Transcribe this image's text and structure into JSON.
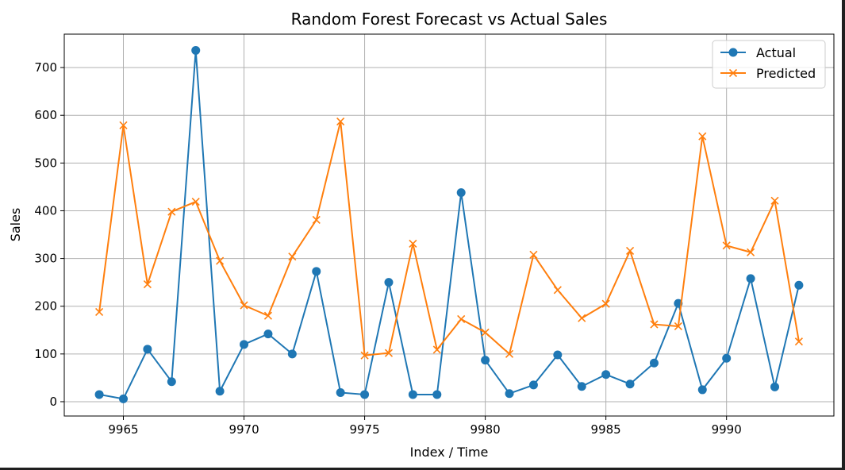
{
  "chart_data": {
    "type": "line",
    "title": "Random Forest Forecast vs Actual Sales",
    "xlabel": "Index / Time",
    "ylabel": "Sales",
    "xlim": [
      9962.55,
      9994.45
    ],
    "ylim": [
      -30,
      770
    ],
    "xticks": [
      9965,
      9970,
      9975,
      9980,
      9985,
      9990
    ],
    "yticks": [
      0,
      100,
      200,
      300,
      400,
      500,
      600,
      700
    ],
    "grid": true,
    "legend_position": "upper right",
    "x": [
      9964,
      9965,
      9966,
      9967,
      9968,
      9969,
      9970,
      9971,
      9972,
      9973,
      9974,
      9975,
      9976,
      9977,
      9978,
      9979,
      9980,
      9981,
      9982,
      9983,
      9984,
      9985,
      9986,
      9987,
      9988,
      9989,
      9990,
      9991,
      9992,
      9993
    ],
    "series": [
      {
        "name": "Actual",
        "marker": "circle",
        "color": "#1f77b4",
        "values": [
          15,
          6,
          110,
          42,
          736,
          22,
          120,
          142,
          100,
          273,
          19,
          15,
          250,
          15,
          15,
          438,
          87,
          17,
          35,
          98,
          32,
          57,
          37,
          81,
          206,
          25,
          91,
          258,
          31,
          244
        ]
      },
      {
        "name": "Predicted",
        "marker": "x",
        "color": "#ff7f0e",
        "values": [
          188,
          579,
          246,
          398,
          419,
          295,
          202,
          180,
          304,
          381,
          587,
          97,
          102,
          331,
          109,
          173,
          145,
          100,
          308,
          234,
          175,
          205,
          316,
          162,
          158,
          556,
          327,
          313,
          421,
          126
        ]
      }
    ]
  }
}
